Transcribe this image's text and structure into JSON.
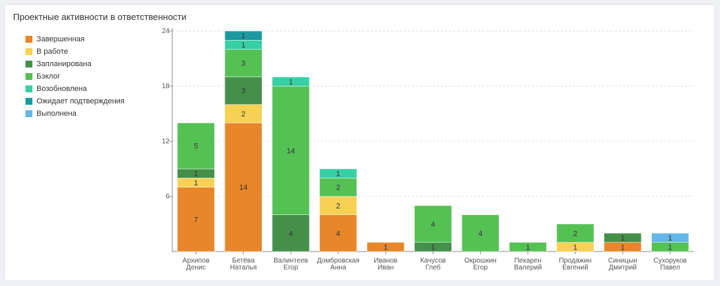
{
  "title": "Проектные активности в ответственности",
  "chart_data": {
    "type": "bar",
    "stacked": true,
    "ylim": [
      0,
      24
    ],
    "yticks": [
      6,
      12,
      18,
      24
    ],
    "grid": true,
    "legend_position": "left",
    "categories": [
      [
        "Архипов",
        "Денис"
      ],
      [
        "Бетёва",
        "Наталья"
      ],
      [
        "Валинтеев",
        "Егор"
      ],
      [
        "Домбровская",
        "Анна"
      ],
      [
        "Иванов",
        "Иван"
      ],
      [
        "Качусов",
        "Глеб"
      ],
      [
        "Окрошкин",
        "Егор"
      ],
      [
        "Пекарен",
        "Валерий"
      ],
      [
        "Продажин",
        "Евгений"
      ],
      [
        "Синицын",
        "Дмитрий"
      ],
      [
        "Сухоруков",
        "Павел"
      ]
    ],
    "series": [
      {
        "name": "Завершенная",
        "color": "#e8872a",
        "values": [
          7,
          14,
          0,
          4,
          1,
          0,
          0,
          0,
          0,
          1,
          0
        ]
      },
      {
        "name": "В работе",
        "color": "#f7d154",
        "values": [
          1,
          2,
          0,
          2,
          0,
          0,
          0,
          0,
          1,
          0,
          0
        ]
      },
      {
        "name": "Запланирована",
        "color": "#44904a",
        "values": [
          1,
          3,
          4,
          0,
          0,
          1,
          0,
          0,
          0,
          1,
          0
        ]
      },
      {
        "name": "Бэклог",
        "color": "#55c155",
        "values": [
          5,
          3,
          14,
          2,
          0,
          4,
          4,
          1,
          2,
          0,
          1
        ]
      },
      {
        "name": "Возобновлена",
        "color": "#36d0a4",
        "values": [
          0,
          1,
          1,
          1,
          0,
          0,
          0,
          0,
          0,
          0,
          0
        ]
      },
      {
        "name": "Ожидает подтверждения",
        "color": "#1a9aa0",
        "values": [
          0,
          1,
          0,
          0,
          0,
          0,
          0,
          0,
          0,
          0,
          0
        ]
      },
      {
        "name": "Выполнена",
        "color": "#64b6e8",
        "values": [
          0,
          0,
          0,
          0,
          0,
          0,
          0,
          0,
          0,
          0,
          1
        ]
      }
    ]
  }
}
